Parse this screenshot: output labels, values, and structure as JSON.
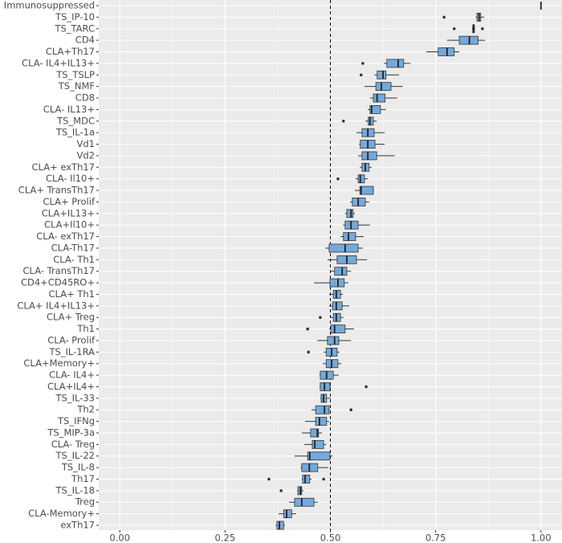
{
  "chart_data": {
    "type": "box",
    "categories": [
      "Immunosuppressed",
      "TS_IP-10",
      "TS_TARC",
      "CD4",
      "CLA+Th17",
      "CLA- IL4+IL13+",
      "TS_TSLP",
      "TS_NMF",
      "CD8",
      "CLA- IL13+",
      "TS_MDC",
      "TS_IL-1a",
      "Vd1",
      "Vd2",
      "CLA+ exTh17",
      "CLA- Il10+",
      "CLA+ TransTh17",
      "CLA+ Prolif",
      "CLA+IL13+",
      "CLA+Il10+",
      "CLA- exTh17",
      "CLA-Th17",
      "CLA- Th1",
      "CLA- TransTh17",
      "CD4+CD45RO+",
      "CLA+ Th1",
      "CLA+ IL4+IL13+",
      "CLA+ Treg",
      "Th1",
      "CLA- Prolif",
      "TS_IL-1RA",
      "CLA+Memory+",
      "CLA- IL4+",
      "CLA+IL4+",
      "TS_IL-33",
      "Th2",
      "TS_IFNg",
      "TS_MIP-3a",
      "CLA- Treg",
      "TS_IL-22",
      "TS_IL-8",
      "Th17",
      "TS_IL-18",
      "Treg",
      "CLA-Memory+",
      "exTh17"
    ],
    "boxes": [
      {
        "min": 1.0,
        "q1": 1.0,
        "median": 1.0,
        "q3": 1.0,
        "max": 1.0
      },
      {
        "min": 0.845,
        "q1": 0.848,
        "median": 0.853,
        "q3": 0.857,
        "max": 0.865,
        "outliers": [
          0.77
        ]
      },
      {
        "min": 0.836,
        "q1": 0.838,
        "median": 0.84,
        "q3": 0.842,
        "max": 0.844,
        "outliers": [
          0.794,
          0.861
        ]
      },
      {
        "min": 0.777,
        "q1": 0.806,
        "median": 0.83,
        "q3": 0.851,
        "max": 0.867
      },
      {
        "min": 0.728,
        "q1": 0.756,
        "median": 0.777,
        "q3": 0.794,
        "max": 0.806
      },
      {
        "min": 0.627,
        "q1": 0.634,
        "median": 0.661,
        "q3": 0.674,
        "max": 0.69,
        "outliers": [
          0.577
        ]
      },
      {
        "min": 0.604,
        "q1": 0.611,
        "median": 0.625,
        "q3": 0.632,
        "max": 0.663,
        "outliers": [
          0.573
        ]
      },
      {
        "min": 0.581,
        "q1": 0.608,
        "median": 0.621,
        "q3": 0.644,
        "max": 0.672
      },
      {
        "min": 0.594,
        "q1": 0.602,
        "median": 0.611,
        "q3": 0.63,
        "max": 0.659
      },
      {
        "min": 0.589,
        "q1": 0.594,
        "median": 0.598,
        "q3": 0.619,
        "max": 0.632
      },
      {
        "min": 0.583,
        "q1": 0.59,
        "median": 0.594,
        "q3": 0.602,
        "max": 0.61,
        "outliers": [
          0.531
        ]
      },
      {
        "min": 0.562,
        "q1": 0.575,
        "median": 0.589,
        "q3": 0.604,
        "max": 0.629
      },
      {
        "min": 0.568,
        "q1": 0.571,
        "median": 0.589,
        "q3": 0.606,
        "max": 0.629
      },
      {
        "min": 0.566,
        "q1": 0.575,
        "median": 0.589,
        "q3": 0.61,
        "max": 0.653
      },
      {
        "min": 0.57,
        "q1": 0.575,
        "median": 0.583,
        "q3": 0.592,
        "max": 0.598
      },
      {
        "min": 0.56,
        "q1": 0.566,
        "median": 0.571,
        "q3": 0.581,
        "max": 0.589,
        "outliers": [
          0.518
        ]
      },
      {
        "min": 0.558,
        "q1": 0.57,
        "median": 0.573,
        "q3": 0.602,
        "max": 0.604
      },
      {
        "min": 0.547,
        "q1": 0.552,
        "median": 0.566,
        "q3": 0.583,
        "max": 0.592
      },
      {
        "min": 0.535,
        "q1": 0.539,
        "median": 0.549,
        "q3": 0.554,
        "max": 0.558
      },
      {
        "min": 0.53,
        "q1": 0.535,
        "median": 0.549,
        "q3": 0.566,
        "max": 0.594
      },
      {
        "min": 0.524,
        "q1": 0.531,
        "median": 0.543,
        "q3": 0.56,
        "max": 0.579
      },
      {
        "min": 0.488,
        "q1": 0.497,
        "median": 0.535,
        "q3": 0.566,
        "max": 0.577
      },
      {
        "min": 0.493,
        "q1": 0.516,
        "median": 0.539,
        "q3": 0.562,
        "max": 0.587
      },
      {
        "min": 0.499,
        "q1": 0.51,
        "median": 0.528,
        "q3": 0.539,
        "max": 0.549
      },
      {
        "min": 0.461,
        "q1": 0.499,
        "median": 0.518,
        "q3": 0.533,
        "max": 0.543
      },
      {
        "min": 0.497,
        "q1": 0.507,
        "median": 0.514,
        "q3": 0.524,
        "max": 0.53
      },
      {
        "min": 0.497,
        "q1": 0.505,
        "median": 0.514,
        "q3": 0.528,
        "max": 0.545
      },
      {
        "min": 0.501,
        "q1": 0.507,
        "median": 0.514,
        "q3": 0.524,
        "max": 0.531,
        "outliers": [
          0.476
        ]
      },
      {
        "min": 0.497,
        "q1": 0.501,
        "median": 0.51,
        "q3": 0.535,
        "max": 0.556,
        "outliers": [
          0.446
        ]
      },
      {
        "min": 0.469,
        "q1": 0.493,
        "median": 0.51,
        "q3": 0.52,
        "max": 0.549
      },
      {
        "min": 0.484,
        "q1": 0.49,
        "median": 0.503,
        "q3": 0.516,
        "max": 0.522,
        "outliers": [
          0.448
        ]
      },
      {
        "min": 0.482,
        "q1": 0.49,
        "median": 0.503,
        "q3": 0.518,
        "max": 0.526
      },
      {
        "min": 0.474,
        "q1": 0.476,
        "median": 0.491,
        "q3": 0.507,
        "max": 0.52
      },
      {
        "min": 0.474,
        "q1": 0.476,
        "median": 0.486,
        "q3": 0.499,
        "max": 0.501,
        "outliers": [
          0.585
        ]
      },
      {
        "min": 0.476,
        "q1": 0.478,
        "median": 0.484,
        "q3": 0.491,
        "max": 0.501
      },
      {
        "min": 0.455,
        "q1": 0.465,
        "median": 0.486,
        "q3": 0.497,
        "max": 0.499,
        "outliers": [
          0.549
        ]
      },
      {
        "min": 0.44,
        "q1": 0.465,
        "median": 0.474,
        "q3": 0.491,
        "max": 0.497
      },
      {
        "min": 0.432,
        "q1": 0.453,
        "median": 0.469,
        "q3": 0.472,
        "max": 0.48
      },
      {
        "min": 0.438,
        "q1": 0.457,
        "median": 0.463,
        "q3": 0.484,
        "max": 0.49
      },
      {
        "min": 0.415,
        "q1": 0.446,
        "median": 0.451,
        "q3": 0.499,
        "max": 0.505
      },
      {
        "min": 0.429,
        "q1": 0.432,
        "median": 0.45,
        "q3": 0.47,
        "max": 0.495
      },
      {
        "min": 0.432,
        "q1": 0.434,
        "median": 0.44,
        "q3": 0.451,
        "max": 0.455,
        "outliers": [
          0.354,
          0.484
        ]
      },
      {
        "min": 0.421,
        "q1": 0.423,
        "median": 0.429,
        "q3": 0.432,
        "max": 0.436,
        "outliers": [
          0.383
        ]
      },
      {
        "min": 0.402,
        "q1": 0.415,
        "median": 0.432,
        "q3": 0.461,
        "max": 0.47
      },
      {
        "min": 0.377,
        "q1": 0.389,
        "median": 0.396,
        "q3": 0.408,
        "max": 0.419
      },
      {
        "min": 0.37,
        "q1": 0.373,
        "median": 0.379,
        "q3": 0.389,
        "max": 0.392
      }
    ],
    "color": "#74a9db",
    "xlim": [
      -0.05,
      1.05
    ],
    "xticks": [
      {
        "value": 0,
        "label": "0.00"
      },
      {
        "value": 0.25,
        "label": "0.25"
      },
      {
        "value": 0.5,
        "label": "0.50"
      },
      {
        "value": 0.75,
        "label": "0.75"
      },
      {
        "value": 1,
        "label": "1.00"
      }
    ],
    "vline": 0.5,
    "grid": true
  }
}
